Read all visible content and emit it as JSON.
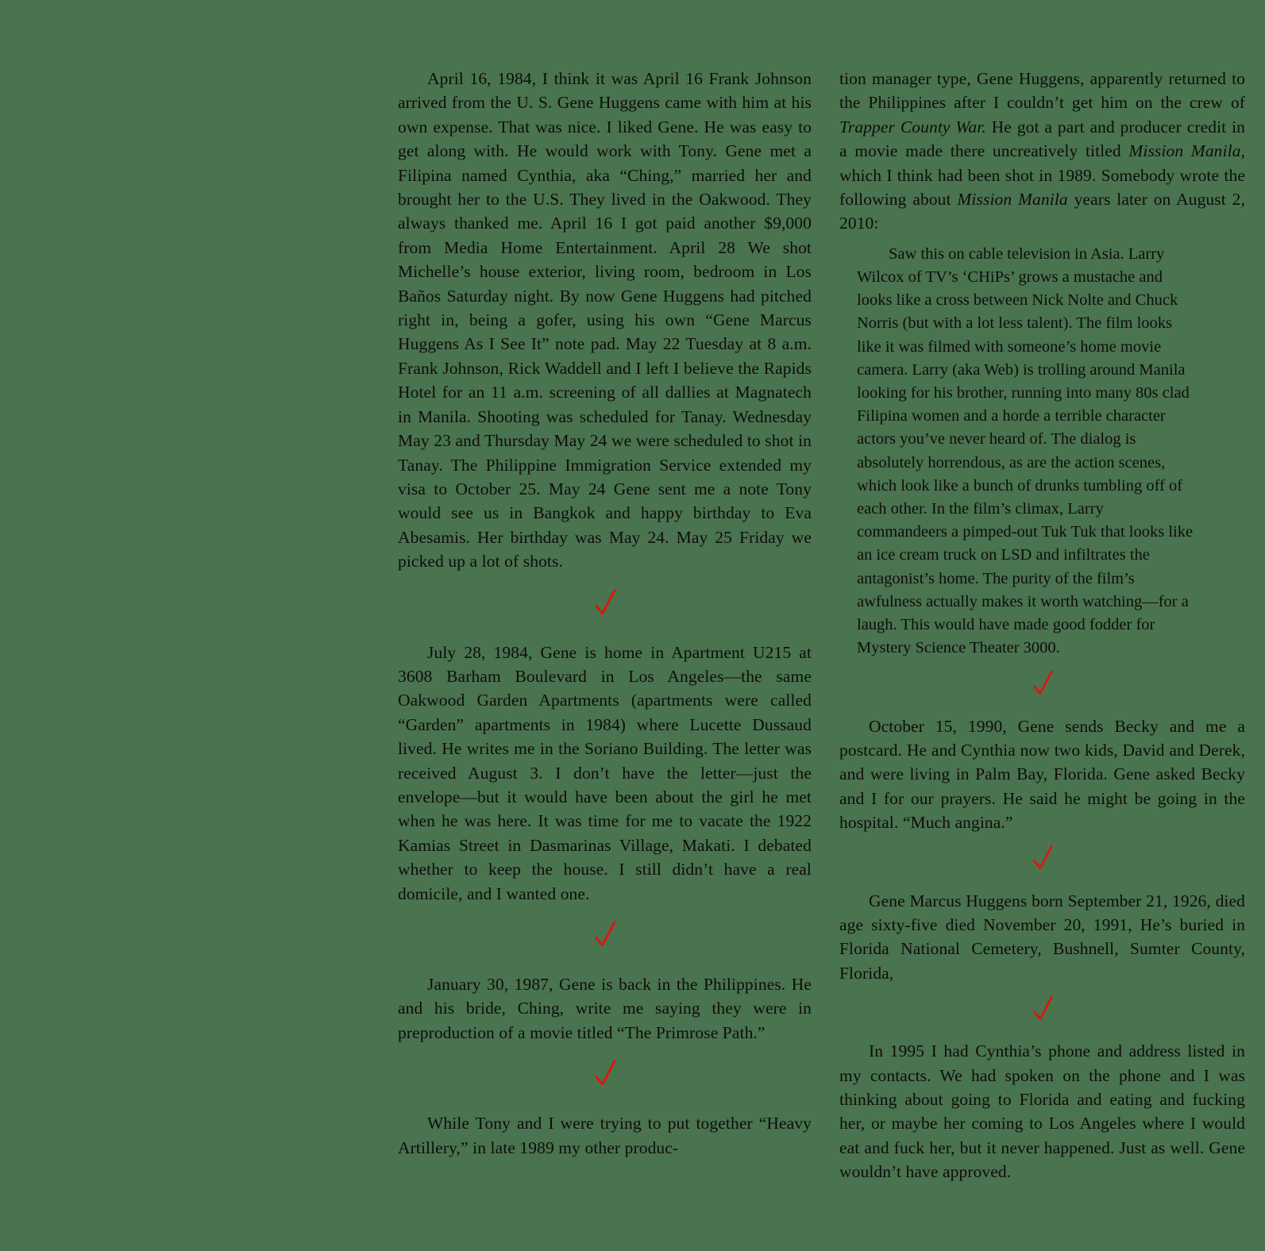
{
  "page": {
    "background_color": "#4a7350",
    "ink_color": "#0e0d0a",
    "accent_color": "#e0150c",
    "ornament_glyph": "red-checkmark"
  },
  "columns": {
    "left": {
      "blocks": [
        {
          "name": "entry-april-16-1984",
          "type": "body",
          "segments": [
            {
              "text": "April 16, 1984, I think it was April 16 Frank Johnson arrived from the U. S. Gene Huggens came with him at his own expense. That was nice. I liked Gene. He was easy to get along with. He would work with Tony. Gene met a Filipina named Cynthia, aka “Ching,” married her and brought her to the U.S. They lived in the Oakwood. They always thanked me. April 16 I got paid another $9,000 from Media Home Entertainment. April 28 We shot Michelle’s house exterior, living room, bedroom in Los Baños Saturday night. By now Gene Huggens had pitched right in, being a gofer, using his own “Gene Marcus Huggens As I See It” note pad. May 22 Tuesday at 8 a.m. Frank Johnson, Rick Waddell and I left I believe the Rapids Hotel for an 11 a.m. screening of all dallies at Magnatech in Manila. Shooting was scheduled for Tanay. Wednesday May 23 and Thursday May 24 we were scheduled to shot in Tanay. The Philippine Immigration Service extended my visa to October 25. May 24 Gene sent me a note Tony would see us in Bangkok and happy birthday to Eva Abesamis. Her birthday was May 24. May 25 Friday we picked up a lot of shots."
            }
          ]
        },
        {
          "name": "entry-july-28-1984",
          "type": "body",
          "segments": [
            {
              "text": "July 28, 1984, Gene is home in Apartment U215 at 3608 Barham Boulevard in Los Angeles—the same Oakwood Garden Apartments (apartments were called “Garden” apartments in 1984) where Lucette Dussaud lived. He writes me in the Soriano Building. The letter was received August 3. I don’t have the letter—just the envelope—but it would have been about the girl he met when he was here. It was time for me to vacate the 1922 Kamias Street in Dasmarinas Village, Makati. I debated whether to keep the house. I still didn’t have a real domicile, and I wanted one."
            }
          ]
        },
        {
          "name": "entry-january-30-1987",
          "type": "body",
          "segments": [
            {
              "text": "January 30, 1987, Gene is back in the Philippines. He and his bride, Ching, write me saying they were in preproduction of a movie titled “The Primrose Path.”"
            }
          ]
        },
        {
          "name": "entry-while-tony",
          "type": "body",
          "segments": [
            {
              "text": "While Tony and I were trying to put together “Heavy Artillery,” in late 1989  my other produc-"
            }
          ]
        }
      ]
    },
    "right": {
      "blocks": [
        {
          "name": "entry-production-manager-continuation",
          "type": "body-continuation",
          "segments": [
            {
              "text": "tion manager type, Gene Huggens, apparently returned to the Philippines after I couldn’t get him on the crew of "
            },
            {
              "text": "Trapper County War.",
              "italic": true
            },
            {
              "text": " He got a part and producer credit in a movie made there uncreatively titled "
            },
            {
              "text": "Mission Manila,",
              "italic": true
            },
            {
              "text": " which I think had been shot in 1989. Somebody wrote the following about "
            },
            {
              "text": "Mission Manila",
              "italic": true
            },
            {
              "text": " years later on August 2, 2010:"
            }
          ]
        },
        {
          "name": "mission-manila-review-quote",
          "type": "quote",
          "segments": [
            {
              "text": "Saw this on cable television in Asia. Larry Wilcox of TV’s ‘CHiPs’ grows a mustache and looks like a cross between Nick Nolte and Chuck Norris (but with a lot less talent). The film looks like it was filmed with someone’s home movie camera. Larry (aka Web) is trolling around Manila looking for his brother, running into many 80s clad Filipina women and a horde a terrible character actors you’ve never heard of. The dialog is absolutely horrendous, as are the action scenes, which look like a bunch of drunks tumbling off of each other. In the film’s climax, Larry commandeers a pimped-out Tuk Tuk that looks like an ice cream truck on LSD and infiltrates the antagonist’s home. The purity of the film’s awfulness actually makes it worth watching—for a laugh. This would have made good fodder for Mystery Science Theater 3000."
            }
          ]
        },
        {
          "name": "entry-october-15-1990",
          "type": "body",
          "segments": [
            {
              "text": "October 15, 1990,  Gene sends Becky and me a postcard. He and Cynthia now two kids, David and Derek, and were living in Palm Bay, Florida. Gene asked Becky and I for our prayers. He said he might be going in the hospital. “Much angina.”"
            }
          ]
        },
        {
          "name": "entry-gene-huggens-obituary",
          "type": "body",
          "segments": [
            {
              "text": "Gene Marcus Huggens born September 21, 1926, died age sixty-five died November 20, 1991, He’s buried in Florida National Cemetery, Bushnell, Sumter County, Florida,"
            }
          ]
        },
        {
          "name": "entry-in-1995",
          "type": "body",
          "segments": [
            {
              "text": "In 1995 I had Cynthia’s phone and address listed in my contacts. We had spoken on the phone and I was thinking about going to Florida and eating and fucking her, or maybe her coming to Los Angeles where I would eat and fuck her, but it never happened. Just as well. Gene wouldn’t have approved."
            }
          ]
        }
      ]
    }
  }
}
